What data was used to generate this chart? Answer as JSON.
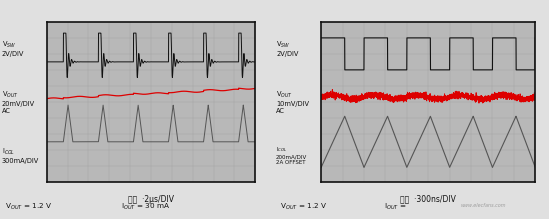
{
  "fig_bg": "#e0e0e0",
  "scope_bg": "#b8b8b8",
  "scope_border": "#111111",
  "grid_color": "#999999",
  "text_color": "#111111",
  "red_color": "#dd0000",
  "dark_color": "#111111",
  "gray_color": "#555555",
  "panel_bg": "#d0d0d0",
  "left_vsw_label": "V$_{SW}$\n2V/DIV",
  "left_vout_label": "V$_{OUT}$\n20mV/DIV\nAC",
  "left_icol_label": "I$_{COL}$\n300mA/DIV",
  "left_xlabel": "时间  ·2μs/DIV",
  "left_vout_text": "V$_{OUT}$ = 1.2 V",
  "left_iout_text": "I$_{OUT}$ = 30 mA",
  "right_vsw_label": "V$_{SW}$\n2V/DIV",
  "right_vout_label": "V$_{OUT}$\n10mV/DIV\nAC",
  "right_icol_label": "I$_{COL}$\n200mA/DIV\n2A OFFSET",
  "right_xlabel": "时间  ·300ns/DIV",
  "right_vout_text": "V$_{OUT}$ = 1.2 V",
  "right_iout_text": "I$_{OUT}$ = ",
  "watermark": "www.elecfans.com"
}
